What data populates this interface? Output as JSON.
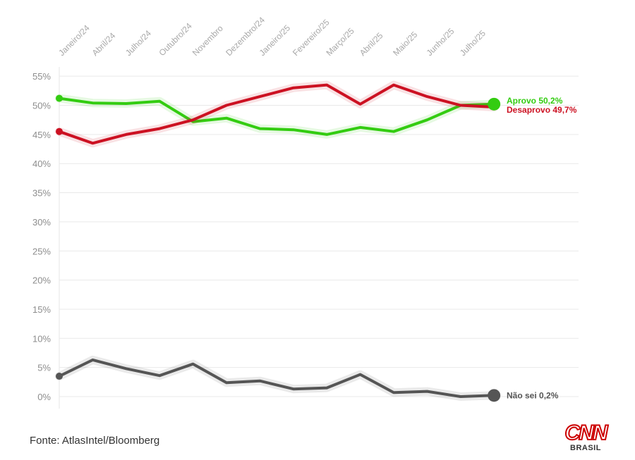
{
  "chart_data": {
    "type": "line",
    "categories": [
      "Janeiro/24",
      "Abril/24",
      "Julho/24",
      "Outubro/24",
      "Novembro",
      "Dezembro/24",
      "Janeiro/25",
      "Fevereiro/25",
      "Março/25",
      "Abril/25",
      "Maio/25",
      "Junho/25",
      "Julho/25",
      "Julho/25"
    ],
    "y_ticks": [
      "0%",
      "5%",
      "10%",
      "15%",
      "20%",
      "25%",
      "30%",
      "35%",
      "40%",
      "45%",
      "50%",
      "55%"
    ],
    "ylim": [
      0,
      57
    ],
    "grid": true,
    "series": [
      {
        "key": "aprovo",
        "color": "#33cc11",
        "values": [
          51.2,
          50.4,
          50.3,
          50.7,
          47.2,
          47.8,
          46.0,
          45.8,
          45.0,
          46.2,
          45.5,
          47.5,
          50.0,
          50.2
        ],
        "end_label": "Aprovo 50,2%"
      },
      {
        "key": "desaprovo",
        "color": "#cc1122",
        "values": [
          45.5,
          43.5,
          45.0,
          46.0,
          47.5,
          50.0,
          51.5,
          53.0,
          53.5,
          50.2,
          53.5,
          51.5,
          50.0,
          49.7
        ],
        "end_label": "Desaprovo 49,7%"
      },
      {
        "key": "nao_sei",
        "color": "#555555",
        "values": [
          3.5,
          6.3,
          4.8,
          3.6,
          5.6,
          2.4,
          2.7,
          1.3,
          1.5,
          3.8,
          0.7,
          0.9,
          0.0,
          0.2
        ],
        "end_label": "Não sei 0,2%"
      }
    ]
  },
  "source_text": "Fonte: AtlasIntel/Bloomberg",
  "logo": {
    "brand": "CNN",
    "sub": "BRASIL"
  }
}
